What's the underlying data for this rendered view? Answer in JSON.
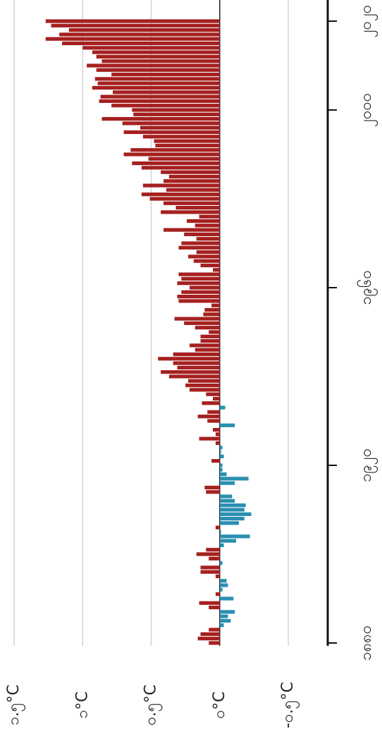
{
  "chart_data": {
    "type": "bar",
    "x": [
      1880,
      1881,
      1882,
      1883,
      1884,
      1885,
      1886,
      1887,
      1888,
      1889,
      1890,
      1891,
      1892,
      1893,
      1894,
      1895,
      1896,
      1897,
      1898,
      1899,
      1900,
      1901,
      1902,
      1903,
      1904,
      1905,
      1906,
      1907,
      1908,
      1909,
      1910,
      1911,
      1912,
      1913,
      1914,
      1915,
      1916,
      1917,
      1918,
      1919,
      1920,
      1921,
      1922,
      1923,
      1924,
      1925,
      1926,
      1927,
      1928,
      1929,
      1930,
      1931,
      1932,
      1933,
      1934,
      1935,
      1936,
      1937,
      1938,
      1939,
      1940,
      1941,
      1942,
      1943,
      1944,
      1945,
      1946,
      1947,
      1948,
      1949,
      1950,
      1951,
      1952,
      1953,
      1954,
      1955,
      1956,
      1957,
      1958,
      1959,
      1960,
      1961,
      1962,
      1963,
      1964,
      1965,
      1966,
      1967,
      1968,
      1969,
      1970,
      1971,
      1972,
      1973,
      1974,
      1975,
      1976,
      1977,
      1978,
      1979,
      1980,
      1981,
      1982,
      1983,
      1984,
      1985,
      1986,
      1987,
      1988,
      1989,
      1990,
      1991,
      1992,
      1993,
      1994,
      1995,
      1996,
      1997,
      1998,
      1999,
      2000,
      2001,
      2002,
      2003,
      2004,
      2005,
      2006,
      2007,
      2008,
      2009,
      2010,
      2011,
      2012,
      2013,
      2014,
      2015,
      2016,
      2017,
      2018,
      2019,
      2020
    ],
    "values": [
      0.08,
      0.16,
      0.14,
      0.08,
      -0.03,
      -0.08,
      -0.06,
      -0.11,
      0.08,
      0.15,
      -0.1,
      0.03,
      -0.02,
      -0.06,
      -0.05,
      0.03,
      0.14,
      0.14,
      -0.02,
      0.08,
      0.17,
      0.1,
      -0.03,
      -0.12,
      -0.22,
      -0.01,
      0.03,
      -0.14,
      -0.18,
      -0.23,
      -0.18,
      -0.19,
      -0.11,
      -0.09,
      0.1,
      0.11,
      -0.11,
      -0.21,
      -0.05,
      -0.02,
      -0.02,
      0.06,
      -0.03,
      -0.01,
      -0.02,
      0.03,
      0.15,
      0.03,
      0.05,
      -0.11,
      0.09,
      0.16,
      0.09,
      -0.04,
      0.13,
      0.05,
      0.1,
      0.22,
      0.25,
      0.23,
      0.37,
      0.43,
      0.31,
      0.34,
      0.45,
      0.34,
      0.18,
      0.22,
      0.14,
      0.14,
      0.08,
      0.18,
      0.26,
      0.33,
      0.12,
      0.11,
      0.06,
      0.3,
      0.31,
      0.28,
      0.22,
      0.31,
      0.28,
      0.3,
      0.05,
      0.14,
      0.19,
      0.23,
      0.17,
      0.3,
      0.28,
      0.17,
      0.26,
      0.41,
      0.18,
      0.24,
      0.15,
      0.43,
      0.32,
      0.41,
      0.51,
      0.57,
      0.39,
      0.56,
      0.41,
      0.37,
      0.43,
      0.57,
      0.64,
      0.52,
      0.7,
      0.65,
      0.47,
      0.48,
      0.56,
      0.7,
      0.58,
      0.71,
      0.86,
      0.63,
      0.64,
      0.79,
      0.88,
      0.87,
      0.78,
      0.93,
      0.89,
      0.91,
      0.79,
      0.9,
      0.97,
      0.86,
      0.9,
      0.93,
      1.0,
      1.15,
      1.27,
      1.17,
      1.1,
      1.23,
      1.27
    ],
    "positive_color": "#a52020",
    "negative_color": "#2b8fb0",
    "xlim": [
      1879,
      2023
    ],
    "xticks": [
      {
        "value": 1880,
        "label": "၁၈၈၀"
      },
      {
        "value": 1920,
        "label": "၁၉၂၀"
      },
      {
        "value": 1960,
        "label": "၁၉၆၀"
      },
      {
        "value": 2000,
        "label": "၂၀၀၀"
      },
      {
        "value": 2020,
        "label": "၂၀၂၀"
      }
    ],
    "ylim": [
      1.5,
      -0.5
    ],
    "yticks": [
      {
        "value": 1.5,
        "label": "၁.၅°C"
      },
      {
        "value": 1,
        "label": "၁°C"
      },
      {
        "value": 0.5,
        "label": "၀.၅°C"
      },
      {
        "value": 0,
        "label": "၀°C"
      },
      {
        "value": -0.5,
        "label": "-၀.၅°C"
      }
    ],
    "grid": true
  }
}
